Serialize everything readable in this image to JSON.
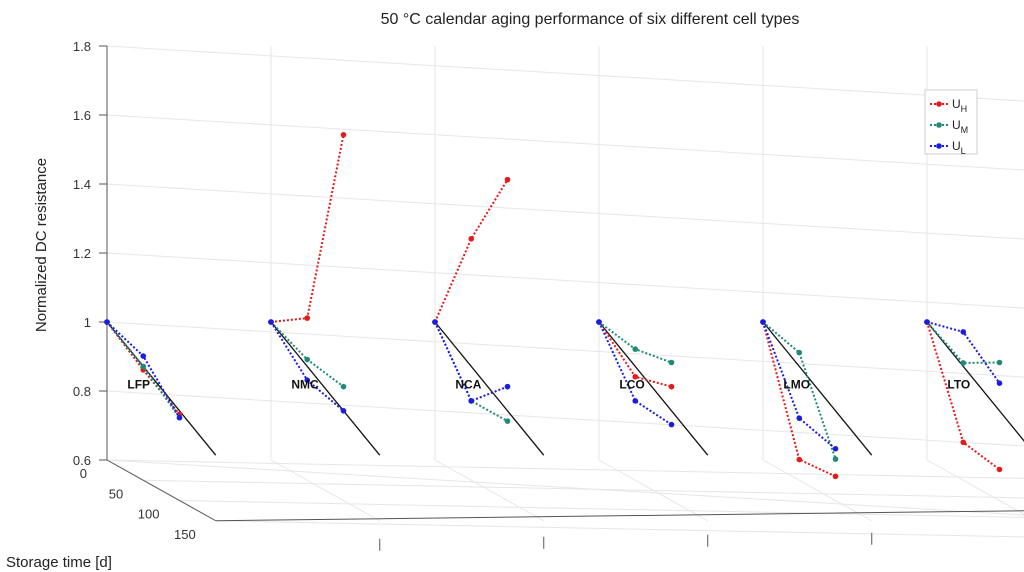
{
  "chart_data": {
    "type": "line",
    "title": "50 °C calendar aging performance of six different cell types",
    "zlabel": "Normalized DC resistance",
    "ylabel": "Storage time [d]",
    "zlim": [
      0.6,
      1.8
    ],
    "z_ticks": [
      "0.6",
      "0.8",
      "1",
      "1.2",
      "1.4",
      "1.6",
      "1.8"
    ],
    "time_ticks": [
      "0",
      "50",
      "100",
      "150"
    ],
    "grid": true,
    "legend_position": "top-right",
    "series_styles": [
      {
        "name": "UH",
        "main": "U",
        "sub": "H",
        "color": "#e41a1c"
      },
      {
        "name": "UM",
        "main": "U",
        "sub": "M",
        "color": "#1f8a78"
      },
      {
        "name": "UL",
        "main": "U",
        "sub": "L",
        "color": "#1c1ce0"
      }
    ],
    "cells": [
      {
        "label": "LFP",
        "time": [
          0,
          50,
          100
        ],
        "reference": [
          1.0,
          0.79
        ],
        "UH": [
          1.0,
          0.92,
          0.85
        ],
        "UM": [
          1.0,
          0.93,
          0.84
        ],
        "UL": [
          1.0,
          0.96,
          0.84
        ]
      },
      {
        "label": "NMC",
        "time": [
          0,
          50,
          100
        ],
        "reference": [
          1.0,
          0.79
        ],
        "UH": [
          1.0,
          1.07,
          1.66
        ],
        "UM": [
          1.0,
          0.95,
          0.93
        ],
        "UL": [
          1.0,
          0.89,
          0.86
        ]
      },
      {
        "label": "NCA",
        "time": [
          0,
          50,
          100
        ],
        "reference": [
          1.0,
          0.79
        ],
        "UH": [
          1.0,
          1.3,
          1.53
        ],
        "UM": [
          1.0,
          0.83,
          0.83
        ],
        "UL": [
          1.0,
          0.83,
          0.93
        ]
      },
      {
        "label": "LCO",
        "time": [
          0,
          50,
          100
        ],
        "reference": [
          1.0,
          0.79
        ],
        "UH": [
          1.0,
          0.9,
          0.93
        ],
        "UM": [
          1.0,
          0.98,
          1.0
        ],
        "UL": [
          1.0,
          0.83,
          0.82
        ]
      },
      {
        "label": "LMO",
        "time": [
          0,
          50,
          100
        ],
        "reference": [
          1.0,
          0.79
        ],
        "UH": [
          1.0,
          0.66,
          0.67
        ],
        "UM": [
          1.0,
          0.97,
          0.72
        ],
        "UL": [
          1.0,
          0.78,
          0.75
        ]
      },
      {
        "label": "LTO",
        "time": [
          0,
          50,
          100
        ],
        "reference": [
          1.0,
          0.79
        ],
        "UH": [
          1.0,
          0.71,
          0.69
        ],
        "UM": [
          1.0,
          0.94,
          1.0
        ],
        "UL": [
          1.0,
          1.03,
          0.94
        ]
      }
    ]
  }
}
